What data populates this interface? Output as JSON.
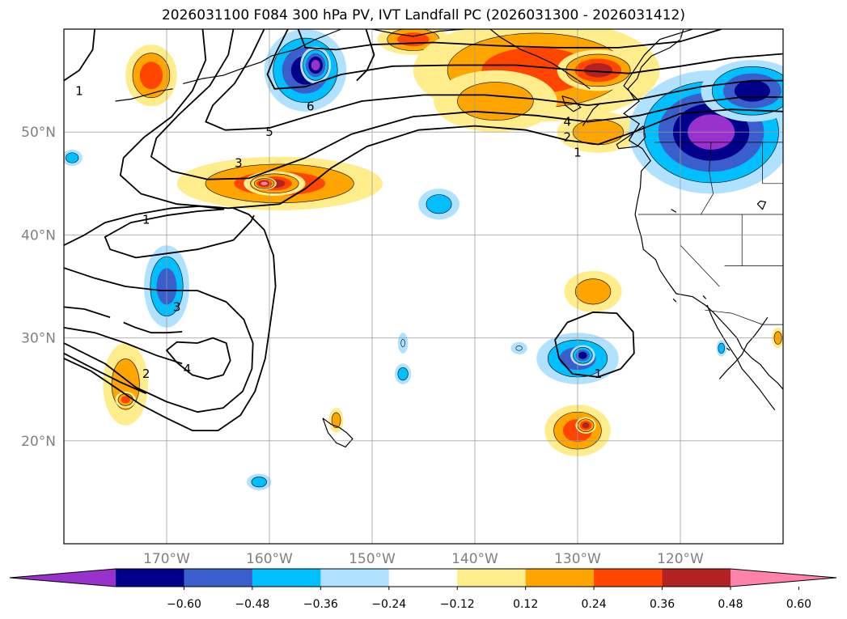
{
  "title": "2026031100 F084 300 hPa PV, IVT Landfall PC (2026031300 - 2026031412)",
  "map": {
    "projection": "PlateCarree",
    "lon_range": [
      180,
      250
    ],
    "lat_range": [
      10,
      60
    ],
    "gridlines": true,
    "coastlines": true,
    "state_borders": true,
    "lat_ticks": [
      {
        "value": 50,
        "label": "50°N"
      },
      {
        "value": 40,
        "label": "40°N"
      },
      {
        "value": 30,
        "label": "30°N"
      },
      {
        "value": 20,
        "label": "20°N"
      }
    ],
    "lon_ticks": [
      {
        "value": 190,
        "label": "170°W"
      },
      {
        "value": 200,
        "label": "160°W"
      },
      {
        "value": 210,
        "label": "150°W"
      },
      {
        "value": 220,
        "label": "140°W"
      },
      {
        "value": 230,
        "label": "130°W"
      },
      {
        "value": 240,
        "label": "120°W"
      }
    ]
  },
  "shading": {
    "field": "IVT Landfall PC",
    "levels": [
      -0.6,
      -0.48,
      -0.36,
      -0.24,
      -0.12,
      0.12,
      0.24,
      0.36,
      0.48,
      0.6
    ],
    "colors": [
      "#9932CC",
      "#00008B",
      "#3A5FCD",
      "#00BFFF",
      "#B0E2FF",
      "#FFFFFF",
      "#FFEC8B",
      "#FFA500",
      "#FF4500",
      "#B22222",
      "#FF82AB"
    ],
    "colorbar_labels": [
      "−0.60",
      "−0.48",
      "−0.36",
      "−0.24",
      "−0.12",
      "0.12",
      "0.24",
      "0.36",
      "0.48",
      "0.60"
    ],
    "blobs": [
      {
        "lon": 188.5,
        "lat": 55.5,
        "rx": 2.5,
        "ry": 3,
        "value": 0.42
      },
      {
        "lon": 203.5,
        "lat": 56,
        "rx": 4,
        "ry": 4,
        "value": -0.5
      },
      {
        "lon": 204.5,
        "lat": 56.5,
        "rx": 1.5,
        "ry": 1.8,
        "value": -0.62
      },
      {
        "lon": 214,
        "lat": 59,
        "rx": 3.5,
        "ry": 1.5,
        "value": 0.4
      },
      {
        "lon": 226,
        "lat": 56,
        "rx": 12,
        "ry": 5,
        "value": 0.4
      },
      {
        "lon": 232,
        "lat": 56,
        "rx": 4,
        "ry": 2,
        "value": 0.5
      },
      {
        "lon": 222,
        "lat": 53,
        "rx": 6,
        "ry": 3,
        "value": 0.3
      },
      {
        "lon": 232,
        "lat": 50,
        "rx": 4,
        "ry": 2,
        "value": 0.25
      },
      {
        "lon": 243,
        "lat": 50,
        "rx": 8,
        "ry": 6,
        "value": -0.63
      },
      {
        "lon": 247,
        "lat": 54,
        "rx": 5,
        "ry": 3,
        "value": -0.5
      },
      {
        "lon": 201,
        "lat": 45,
        "rx": 10,
        "ry": 2.6,
        "value": 0.42
      },
      {
        "lon": 200.5,
        "lat": 45,
        "rx": 3,
        "ry": 1.2,
        "value": 0.52
      },
      {
        "lon": 199.5,
        "lat": 45,
        "rx": 1.2,
        "ry": 0.6,
        "value": 0.65
      },
      {
        "lon": 216.5,
        "lat": 43,
        "rx": 2,
        "ry": 1.5,
        "value": -0.3
      },
      {
        "lon": 190,
        "lat": 35,
        "rx": 2.2,
        "ry": 4,
        "value": -0.4
      },
      {
        "lon": 186,
        "lat": 25.5,
        "rx": 2.2,
        "ry": 4,
        "value": 0.34
      },
      {
        "lon": 186,
        "lat": 24,
        "rx": 1,
        "ry": 0.8,
        "value": 0.42
      },
      {
        "lon": 231.5,
        "lat": 34.5,
        "rx": 2.8,
        "ry": 2,
        "value": 0.34
      },
      {
        "lon": 230,
        "lat": 28,
        "rx": 4,
        "ry": 2.5,
        "value": -0.4
      },
      {
        "lon": 230.5,
        "lat": 28.3,
        "rx": 1.2,
        "ry": 1,
        "value": -0.55
      },
      {
        "lon": 230,
        "lat": 21,
        "rx": 3.2,
        "ry": 2.5,
        "value": 0.38
      },
      {
        "lon": 230.8,
        "lat": 21.5,
        "rx": 1,
        "ry": 0.8,
        "value": 0.5
      },
      {
        "lon": 206.5,
        "lat": 22,
        "rx": 0.7,
        "ry": 1.2,
        "value": 0.28
      },
      {
        "lon": 199,
        "lat": 16,
        "rx": 1.2,
        "ry": 0.8,
        "value": -0.28
      },
      {
        "lon": 213,
        "lat": 26.5,
        "rx": 0.8,
        "ry": 1,
        "value": -0.26
      },
      {
        "lon": 213,
        "lat": 29.5,
        "rx": 0.5,
        "ry": 1,
        "value": -0.2
      },
      {
        "lon": 224.3,
        "lat": 29,
        "rx": 0.8,
        "ry": 0.6,
        "value": -0.2
      },
      {
        "lon": 180.8,
        "lat": 47.5,
        "rx": 1,
        "ry": 0.8,
        "value": -0.25
      },
      {
        "lon": 249.5,
        "lat": 30,
        "rx": 0.6,
        "ry": 1,
        "value": 0.25
      },
      {
        "lon": 244,
        "lat": 29,
        "rx": 0.5,
        "ry": 0.8,
        "value": -0.25
      }
    ]
  },
  "pv_contours": {
    "field": "300 hPa PV",
    "labels": [
      {
        "text": "1",
        "lon": 181.5,
        "lat": 54
      },
      {
        "text": "6",
        "lon": 204,
        "lat": 52.5
      },
      {
        "text": "5",
        "lon": 200,
        "lat": 50
      },
      {
        "text": "3",
        "lon": 197,
        "lat": 47
      },
      {
        "text": "1",
        "lon": 188,
        "lat": 41.5
      },
      {
        "text": "4",
        "lon": 229,
        "lat": 51
      },
      {
        "text": "2",
        "lon": 229,
        "lat": 49.5
      },
      {
        "text": "1",
        "lon": 230,
        "lat": 48
      },
      {
        "text": "3",
        "lon": 191,
        "lat": 33
      },
      {
        "text": "4",
        "lon": 192,
        "lat": 27
      },
      {
        "text": "2",
        "lon": 188,
        "lat": 26.5
      },
      {
        "text": "1",
        "lon": 232,
        "lat": 26.5
      }
    ]
  }
}
